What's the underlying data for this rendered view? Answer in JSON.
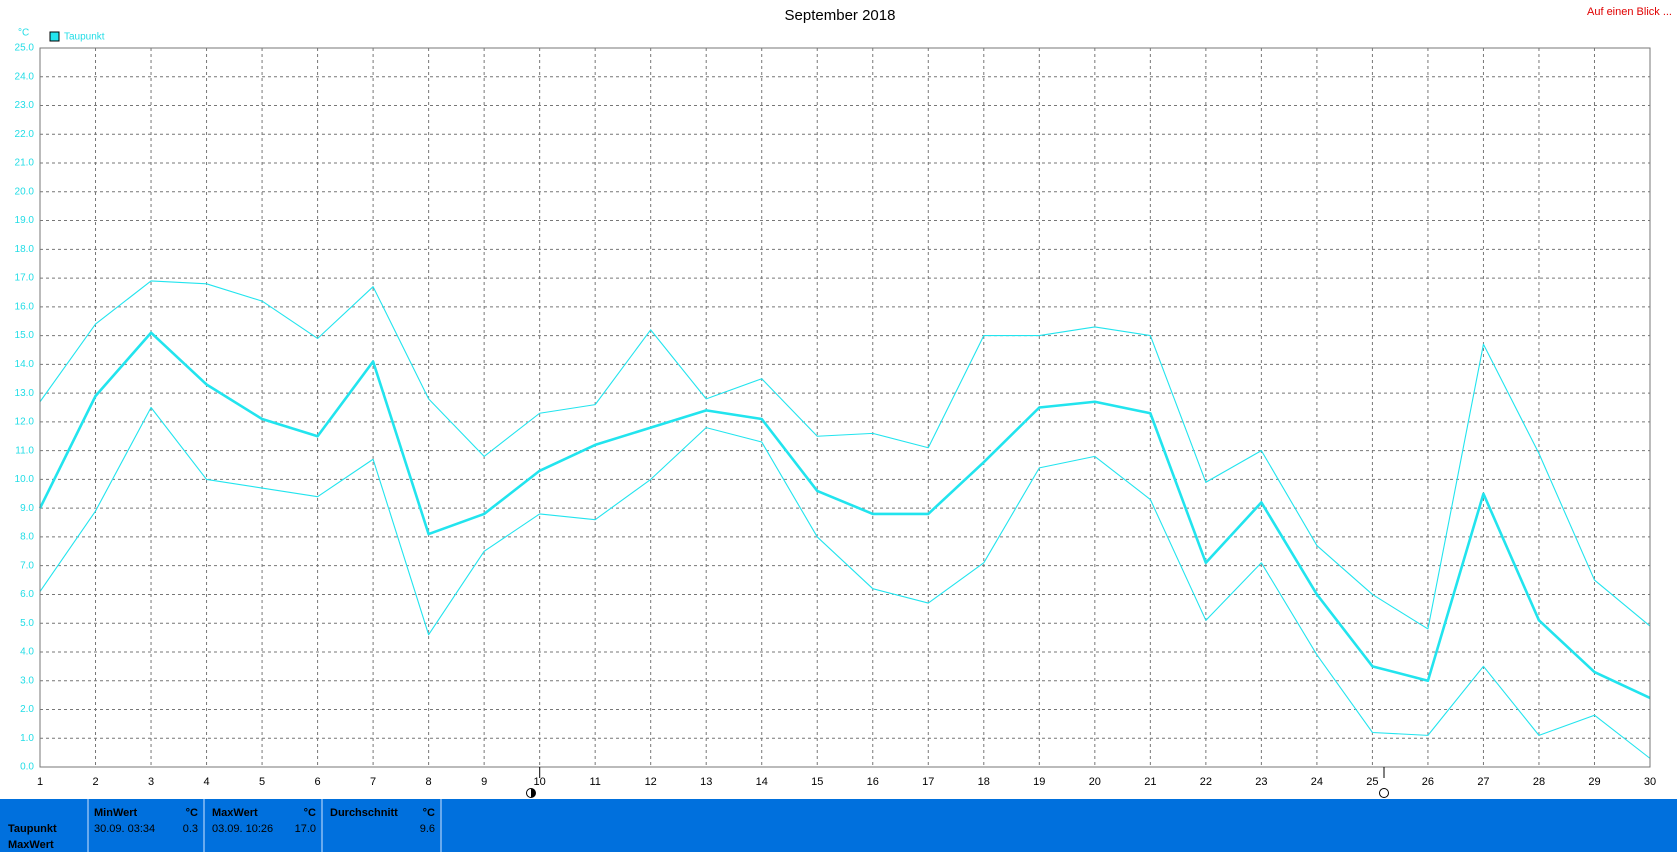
{
  "header": {
    "link": "Auf einen Blick ..."
  },
  "chart_data": {
    "type": "line",
    "title": "September 2018",
    "y_unit": "°C",
    "x": [
      1,
      2,
      3,
      4,
      5,
      6,
      7,
      8,
      9,
      10,
      11,
      12,
      13,
      14,
      15,
      16,
      17,
      18,
      19,
      20,
      21,
      22,
      23,
      24,
      25,
      26,
      27,
      28,
      29,
      30
    ],
    "xlim": [
      1,
      30
    ],
    "xticks": [
      1,
      2,
      3,
      4,
      5,
      6,
      7,
      8,
      9,
      10,
      11,
      12,
      13,
      14,
      15,
      16,
      17,
      18,
      19,
      20,
      21,
      22,
      23,
      24,
      25,
      26,
      27,
      28,
      29,
      30
    ],
    "ylim": [
      0,
      25
    ],
    "yticks": [
      {
        "value": 0,
        "label": "0.0"
      },
      {
        "value": 1,
        "label": "1.0"
      },
      {
        "value": 2,
        "label": "2.0"
      },
      {
        "value": 3,
        "label": "3.0"
      },
      {
        "value": 4,
        "label": "4.0"
      },
      {
        "value": 5,
        "label": "5.0"
      },
      {
        "value": 6,
        "label": "6.0"
      },
      {
        "value": 7,
        "label": "7.0"
      },
      {
        "value": 8,
        "label": "8.0"
      },
      {
        "value": 9,
        "label": "9.0"
      },
      {
        "value": 10,
        "label": "10.0"
      },
      {
        "value": 11,
        "label": "11.0"
      },
      {
        "value": 12,
        "label": "12.0"
      },
      {
        "value": 13,
        "label": "13.0"
      },
      {
        "value": 14,
        "label": "14.0"
      },
      {
        "value": 15,
        "label": "15.0"
      },
      {
        "value": 16,
        "label": "16.0"
      },
      {
        "value": 17,
        "label": "17.0"
      },
      {
        "value": 18,
        "label": "18.0"
      },
      {
        "value": 19,
        "label": "19.0"
      },
      {
        "value": 20,
        "label": "20.0"
      },
      {
        "value": 21,
        "label": "21.0"
      },
      {
        "value": 22,
        "label": "22.0"
      },
      {
        "value": 23,
        "label": "23.0"
      },
      {
        "value": 24,
        "label": "24.0"
      },
      {
        "value": 25,
        "label": "25.0"
      }
    ],
    "grid": true,
    "series": [
      {
        "name": "Taupunkt",
        "color": "#22e4ee",
        "values": [
          9.0,
          12.9,
          15.1,
          13.3,
          12.1,
          11.5,
          14.1,
          8.1,
          8.8,
          10.3,
          11.2,
          11.8,
          12.4,
          12.1,
          9.6,
          8.8,
          8.8,
          10.6,
          12.5,
          12.7,
          12.3,
          7.1,
          9.2,
          6.0,
          3.5,
          3.0,
          9.5,
          5.1,
          3.3,
          2.4
        ]
      },
      {
        "color": "#22e4ee",
        "values": [
          12.7,
          15.4,
          16.9,
          16.8,
          16.2,
          14.9,
          16.7,
          12.8,
          10.8,
          12.3,
          12.6,
          15.2,
          12.8,
          13.5,
          11.5,
          11.6,
          11.1,
          15.0,
          15.0,
          15.3,
          15.0,
          9.9,
          11.0,
          7.7,
          6.0,
          4.8,
          14.7,
          10.9,
          6.5,
          4.9
        ]
      },
      {
        "color": "#22e4ee",
        "values": [
          6.1,
          8.9,
          12.5,
          10.0,
          9.7,
          9.4,
          10.7,
          4.6,
          7.5,
          8.8,
          8.6,
          10.0,
          11.8,
          11.3,
          8.0,
          6.2,
          5.7,
          7.1,
          10.4,
          10.8,
          9.3,
          5.1,
          7.1,
          3.9,
          1.2,
          1.1,
          3.5,
          1.1,
          1.8,
          0.3
        ]
      }
    ]
  },
  "table": {
    "rows": [
      "Taupunkt",
      "MaxWert"
    ],
    "columns": [
      {
        "header": "MinWert",
        "unit": "°C",
        "time": "30.09.  03:34",
        "value": "0.3"
      },
      {
        "header": "MaxWert",
        "unit": "°C",
        "time": "03.09.  10:26",
        "value": "17.0"
      },
      {
        "header": "Durchschnitt",
        "unit": "°C",
        "value": "9.6"
      }
    ]
  }
}
